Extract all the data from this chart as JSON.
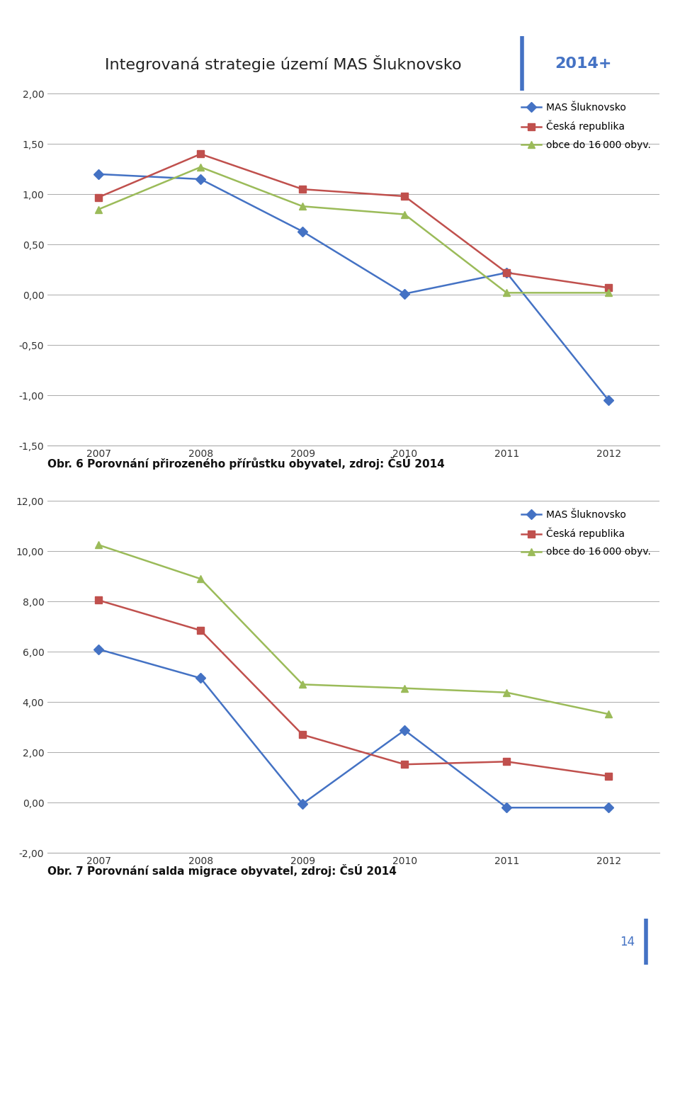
{
  "header_title": "Integrovaná strategie území MAS Šluknovsko",
  "header_year": "2014+",
  "page_number": "14",
  "chart1": {
    "years": [
      2007,
      2008,
      2009,
      2010,
      2011,
      2012
    ],
    "mas": [
      1.2,
      1.15,
      0.63,
      0.01,
      0.22,
      -1.05
    ],
    "cr": [
      0.97,
      1.4,
      1.05,
      0.98,
      0.22,
      0.07
    ],
    "obce": [
      0.85,
      1.27,
      0.88,
      0.8,
      0.02,
      0.02
    ],
    "ylim": [
      -1.5,
      2.0
    ],
    "yticks": [
      -1.5,
      -1.0,
      -0.5,
      0.0,
      0.5,
      1.0,
      1.5,
      2.0
    ],
    "caption": "Obr. 6 Porovnání přirozeného přírůstku obyvatel, zdroj: ČsÚ 2014"
  },
  "chart2": {
    "years": [
      2007,
      2008,
      2009,
      2010,
      2011,
      2012
    ],
    "mas": [
      6.1,
      4.95,
      -0.05,
      2.88,
      -0.2,
      -0.2
    ],
    "cr": [
      8.05,
      6.85,
      2.7,
      1.52,
      1.63,
      1.05
    ],
    "obce": [
      10.25,
      8.9,
      4.7,
      4.55,
      4.38,
      3.52
    ],
    "ylim": [
      -2.0,
      12.0
    ],
    "yticks": [
      -2.0,
      0.0,
      2.0,
      4.0,
      6.0,
      8.0,
      10.0,
      12.0
    ],
    "caption": "Obr. 7 Porovnání salda migrace obyvatel, zdroj: ČsÚ 2014"
  },
  "legend_labels": [
    "MAS Šluknovsko",
    "Česká republika",
    "obce do 16 000 obyv."
  ],
  "color_mas": "#4472C4",
  "color_cr": "#C0504D",
  "color_obce": "#9BBB59",
  "marker_mas": "D",
  "marker_cr": "s",
  "marker_obce": "^",
  "line_width": 1.8,
  "marker_size": 7,
  "bg_page": "#FFFFFF",
  "bg_chart": "#FFFFFF",
  "grid_color": "#AAAAAA",
  "header_line_color": "#4472C4",
  "tick_label_color": "#333333",
  "caption_fontsize": 11,
  "axis_tick_fontsize": 10,
  "legend_fontsize": 10,
  "header_fontsize": 16,
  "year_fontsize": 10,
  "page_num_color": "#4472C4"
}
